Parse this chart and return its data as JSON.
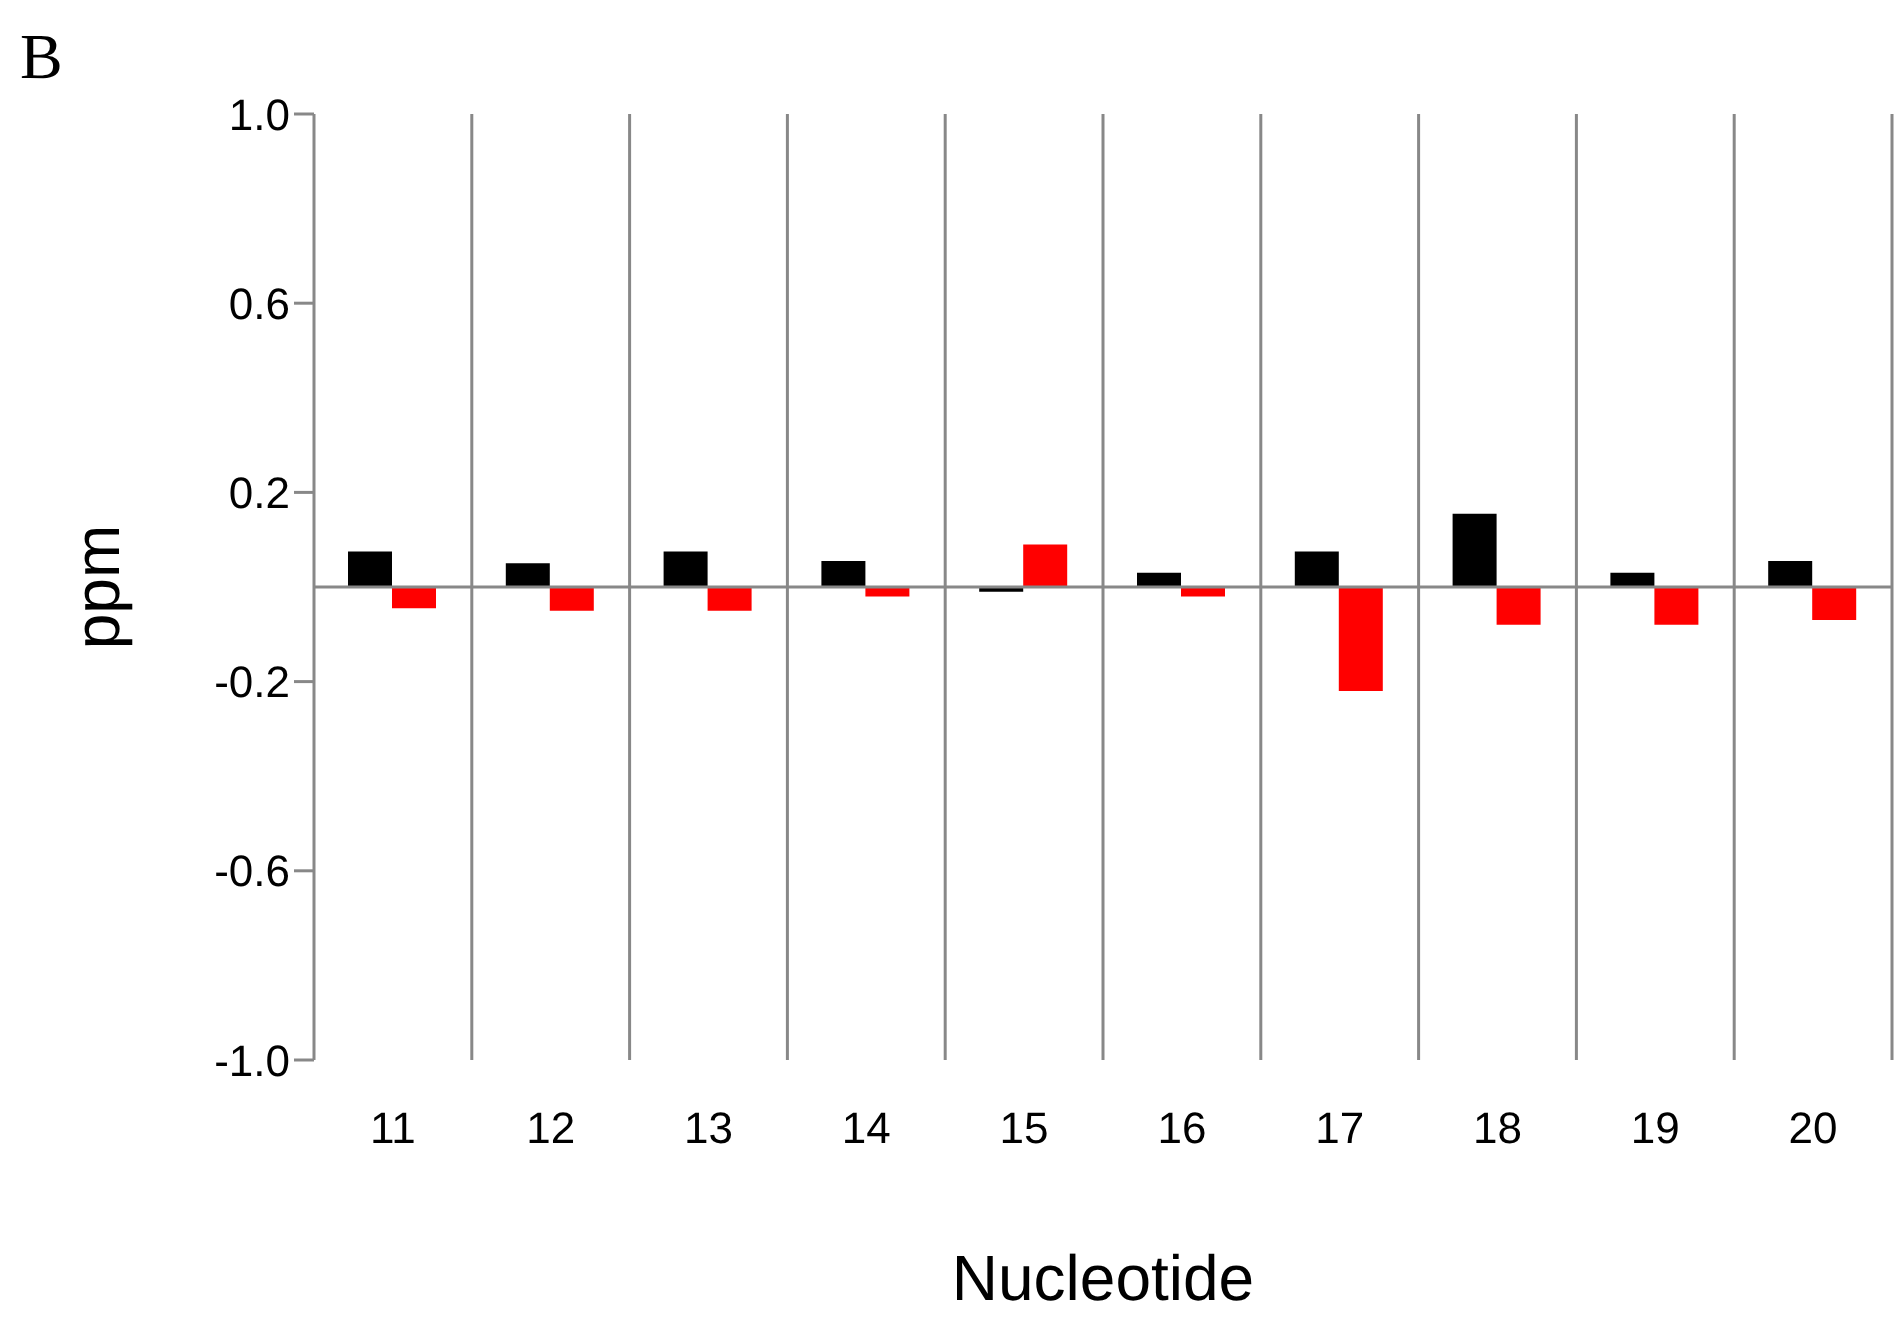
{
  "chart_data": {
    "type": "bar",
    "title": "B",
    "xlabel": "Nucleotide",
    "ylabel": "ppm",
    "categories": [
      "11",
      "12",
      "13",
      "14",
      "15",
      "16",
      "17",
      "18",
      "19",
      "20"
    ],
    "series": [
      {
        "color": "#000000",
        "values": [
          0.075,
          0.05,
          0.075,
          0.055,
          -0.01,
          0.03,
          0.075,
          0.155,
          0.03,
          0.055
        ]
      },
      {
        "color": "#ff0000",
        "values": [
          -0.045,
          -0.05,
          -0.05,
          -0.02,
          0.09,
          -0.02,
          -0.22,
          -0.08,
          -0.08,
          -0.07
        ]
      }
    ],
    "ylim": [
      -1.0,
      1.0
    ],
    "yticks": [
      {
        "value": 1.0,
        "label": "1.0"
      },
      {
        "value": 0.6,
        "label": "0.6"
      },
      {
        "value": 0.2,
        "label": "0.2"
      },
      {
        "value": -0.2,
        "label": "-0.2"
      },
      {
        "value": -0.6,
        "label": "-0.6"
      },
      {
        "value": -1.0,
        "label": "-1.0"
      }
    ],
    "grid": "x"
  }
}
